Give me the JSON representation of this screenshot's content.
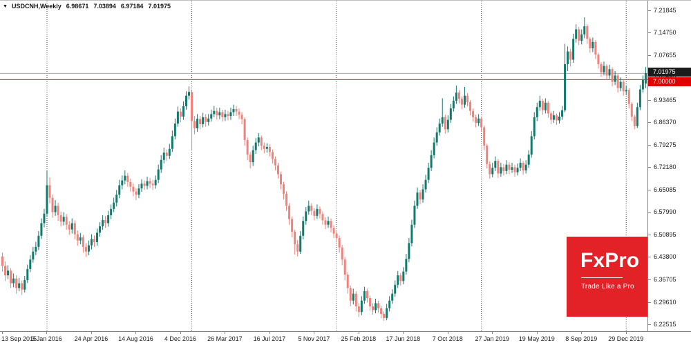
{
  "header": {
    "arrow": "▼",
    "symbol": "USDCNH,Weekly",
    "open": "6.98671",
    "high": "7.03894",
    "low": "6.97184",
    "close": "7.01975"
  },
  "colors": {
    "bull": "#12796d",
    "bear": "#f1817a",
    "price_line": "#b03a3a",
    "current_line": "#a8a8a8",
    "badge_current_bg": "#1c1c1c",
    "badge_level_bg": "#e00000",
    "separator": "#444444",
    "axis_text": "#1a1a1a",
    "logo_bg": "#e32228"
  },
  "y_axis": {
    "ticks": [
      "7.21845",
      "7.14750",
      "7.07655",
      "7.00560",
      "6.93465",
      "6.86370",
      "6.79275",
      "6.72180",
      "6.65085",
      "6.57990",
      "6.50895",
      "6.43800",
      "6.36705",
      "6.29610",
      "6.22515"
    ],
    "badge_current": "7.01975",
    "badge_level": "7.00000"
  },
  "x_axis": {
    "labels": [
      {
        "week": 0,
        "text": "13 Sep 2015"
      },
      {
        "week": 16,
        "text": "3 Jan 2016"
      },
      {
        "week": 32,
        "text": "24 Apr 2016"
      },
      {
        "week": 48,
        "text": "14 Aug 2016"
      },
      {
        "week": 64,
        "text": "4 Dec 2016"
      },
      {
        "week": 80,
        "text": "26 Mar 2017"
      },
      {
        "week": 96,
        "text": "16 Jul 2017"
      },
      {
        "week": 112,
        "text": "5 Nov 2017"
      },
      {
        "week": 128,
        "text": "25 Feb 2018"
      },
      {
        "week": 144,
        "text": "17 Jun 2018"
      },
      {
        "week": 160,
        "text": "7 Oct 2018"
      },
      {
        "week": 176,
        "text": "27 Jan 2019"
      },
      {
        "week": 192,
        "text": "19 May 2019"
      },
      {
        "week": 208,
        "text": "8 Sep 2019"
      },
      {
        "week": 224,
        "text": "29 Dec 2019"
      }
    ]
  },
  "logo": {
    "text": "FxPro",
    "tagline": "Trade Like a Pro"
  },
  "chart_data": {
    "type": "candlestick",
    "symbol": "USDCNH",
    "timeframe": "Weekly",
    "title": "USDCNH,Weekly 6.98671 7.03894 6.97184 7.01975",
    "grid": "off",
    "legend": "none",
    "ylim": [
      6.2034,
      7.2486
    ],
    "current_price": 7.01975,
    "horizontal_level": 7.0,
    "year_separator_weeks": [
      16,
      68,
      120,
      172,
      224
    ],
    "x_start_label": "13 Sep 2015",
    "x_end_label": "29 Dec 2019",
    "candles_ohlc": [
      [
        6.44,
        6.452,
        6.392,
        6.41
      ],
      [
        6.41,
        6.424,
        6.362,
        6.38
      ],
      [
        6.38,
        6.412,
        6.368,
        6.395
      ],
      [
        6.395,
        6.403,
        6.34,
        6.355
      ],
      [
        6.355,
        6.386,
        6.342,
        6.37
      ],
      [
        6.37,
        6.38,
        6.322,
        6.34
      ],
      [
        6.34,
        6.372,
        6.33,
        6.355
      ],
      [
        6.355,
        6.364,
        6.318,
        6.335
      ],
      [
        6.335,
        6.378,
        6.326,
        6.365
      ],
      [
        6.365,
        6.414,
        6.356,
        6.4
      ],
      [
        6.4,
        6.444,
        6.39,
        6.43
      ],
      [
        6.43,
        6.47,
        6.42,
        6.455
      ],
      [
        6.455,
        6.486,
        6.444,
        6.47
      ],
      [
        6.47,
        6.52,
        6.46,
        6.505
      ],
      [
        6.505,
        6.56,
        6.495,
        6.545
      ],
      [
        6.545,
        6.59,
        6.532,
        6.575
      ],
      [
        6.575,
        6.712,
        6.565,
        6.665
      ],
      [
        6.665,
        6.69,
        6.608,
        6.625
      ],
      [
        6.625,
        6.636,
        6.562,
        6.58
      ],
      [
        6.58,
        6.618,
        6.568,
        6.6
      ],
      [
        6.6,
        6.61,
        6.552,
        6.57
      ],
      [
        6.57,
        6.582,
        6.534,
        6.55
      ],
      [
        6.55,
        6.58,
        6.538,
        6.565
      ],
      [
        6.565,
        6.574,
        6.524,
        6.54
      ],
      [
        6.54,
        6.552,
        6.508,
        6.525
      ],
      [
        6.525,
        6.56,
        6.512,
        6.545
      ],
      [
        6.545,
        6.554,
        6.494,
        6.51
      ],
      [
        6.51,
        6.522,
        6.474,
        6.49
      ],
      [
        6.49,
        6.514,
        6.478,
        6.5
      ],
      [
        6.5,
        6.508,
        6.452,
        6.47
      ],
      [
        6.47,
        6.482,
        6.438,
        6.455
      ],
      [
        6.455,
        6.49,
        6.444,
        6.475
      ],
      [
        6.475,
        6.51,
        6.462,
        6.495
      ],
      [
        6.495,
        6.506,
        6.47,
        6.485
      ],
      [
        6.485,
        6.528,
        6.474,
        6.515
      ],
      [
        6.515,
        6.548,
        6.502,
        6.535
      ],
      [
        6.535,
        6.57,
        6.524,
        6.555
      ],
      [
        6.555,
        6.568,
        6.53,
        6.545
      ],
      [
        6.545,
        6.584,
        6.534,
        6.57
      ],
      [
        6.57,
        6.604,
        6.558,
        6.59
      ],
      [
        6.59,
        6.626,
        6.58,
        6.61
      ],
      [
        6.61,
        6.65,
        6.598,
        6.635
      ],
      [
        6.635,
        6.682,
        6.624,
        6.665
      ],
      [
        6.665,
        6.696,
        6.652,
        6.68
      ],
      [
        6.68,
        6.712,
        6.668,
        6.695
      ],
      [
        6.695,
        6.704,
        6.66,
        6.675
      ],
      [
        6.675,
        6.686,
        6.645,
        6.66
      ],
      [
        6.66,
        6.67,
        6.63,
        6.645
      ],
      [
        6.645,
        6.656,
        6.618,
        6.635
      ],
      [
        6.635,
        6.668,
        6.624,
        6.655
      ],
      [
        6.655,
        6.684,
        6.644,
        6.67
      ],
      [
        6.67,
        6.68,
        6.65,
        6.663
      ],
      [
        6.663,
        6.692,
        6.652,
        6.678
      ],
      [
        6.678,
        6.688,
        6.656,
        6.67
      ],
      [
        6.67,
        6.682,
        6.65,
        6.665
      ],
      [
        6.665,
        6.696,
        6.654,
        6.682
      ],
      [
        6.682,
        6.73,
        6.672,
        6.715
      ],
      [
        6.715,
        6.76,
        6.704,
        6.745
      ],
      [
        6.745,
        6.784,
        6.734,
        6.768
      ],
      [
        6.768,
        6.778,
        6.742,
        6.758
      ],
      [
        6.758,
        6.796,
        6.748,
        6.78
      ],
      [
        6.78,
        6.838,
        6.77,
        6.82
      ],
      [
        6.82,
        6.876,
        6.81,
        6.86
      ],
      [
        6.86,
        6.914,
        6.85,
        6.898
      ],
      [
        6.898,
        6.908,
        6.864,
        6.882
      ],
      [
        6.882,
        6.93,
        6.872,
        6.915
      ],
      [
        6.915,
        6.962,
        6.904,
        6.948
      ],
      [
        6.948,
        6.978,
        6.936,
        6.96
      ],
      [
        6.96,
        6.966,
        6.776,
        6.868
      ],
      [
        6.868,
        6.884,
        6.826,
        6.845
      ],
      [
        6.845,
        6.89,
        6.834,
        6.875
      ],
      [
        6.875,
        6.884,
        6.842,
        6.858
      ],
      [
        6.858,
        6.894,
        6.848,
        6.88
      ],
      [
        6.88,
        6.89,
        6.85,
        6.865
      ],
      [
        6.865,
        6.89,
        6.854,
        6.876
      ],
      [
        6.876,
        6.904,
        6.866,
        6.89
      ],
      [
        6.89,
        6.916,
        6.88,
        6.9
      ],
      [
        6.9,
        6.91,
        6.872,
        6.886
      ],
      [
        6.886,
        6.91,
        6.874,
        6.896
      ],
      [
        6.896,
        6.904,
        6.866,
        6.88
      ],
      [
        6.88,
        6.904,
        6.868,
        6.89
      ],
      [
        6.89,
        6.9,
        6.87,
        6.884
      ],
      [
        6.884,
        6.91,
        6.872,
        6.896
      ],
      [
        6.896,
        6.92,
        6.884,
        6.906
      ],
      [
        6.906,
        6.916,
        6.884,
        6.898
      ],
      [
        6.898,
        6.908,
        6.874,
        6.888
      ],
      [
        6.888,
        6.896,
        6.858,
        6.874
      ],
      [
        6.874,
        6.88,
        6.79,
        6.808
      ],
      [
        6.808,
        6.816,
        6.744,
        6.762
      ],
      [
        6.762,
        6.77,
        6.718,
        6.738
      ],
      [
        6.738,
        6.79,
        6.726,
        6.776
      ],
      [
        6.776,
        6.814,
        6.764,
        6.8
      ],
      [
        6.8,
        6.83,
        6.788,
        6.816
      ],
      [
        6.816,
        6.822,
        6.776,
        6.79
      ],
      [
        6.79,
        6.8,
        6.766,
        6.78
      ],
      [
        6.78,
        6.798,
        6.768,
        6.786
      ],
      [
        6.786,
        6.794,
        6.756,
        6.77
      ],
      [
        6.77,
        6.778,
        6.734,
        6.748
      ],
      [
        6.748,
        6.756,
        6.712,
        6.728
      ],
      [
        6.728,
        6.736,
        6.686,
        6.7
      ],
      [
        6.7,
        6.708,
        6.652,
        6.668
      ],
      [
        6.668,
        6.676,
        6.62,
        6.638
      ],
      [
        6.638,
        6.646,
        6.584,
        6.6
      ],
      [
        6.6,
        6.608,
        6.54,
        6.558
      ],
      [
        6.558,
        6.566,
        6.5,
        6.518
      ],
      [
        6.518,
        6.524,
        6.446,
        6.478
      ],
      [
        6.478,
        6.492,
        6.44,
        6.455
      ],
      [
        6.455,
        6.52,
        6.448,
        6.505
      ],
      [
        6.505,
        6.566,
        6.494,
        6.552
      ],
      [
        6.552,
        6.596,
        6.54,
        6.582
      ],
      [
        6.582,
        6.616,
        6.572,
        6.6
      ],
      [
        6.6,
        6.608,
        6.57,
        6.584
      ],
      [
        6.584,
        6.592,
        6.554,
        6.568
      ],
      [
        6.568,
        6.604,
        6.558,
        6.59
      ],
      [
        6.59,
        6.598,
        6.56,
        6.574
      ],
      [
        6.574,
        6.582,
        6.54,
        6.554
      ],
      [
        6.554,
        6.564,
        6.526,
        6.54
      ],
      [
        6.54,
        6.566,
        6.53,
        6.552
      ],
      [
        6.552,
        6.56,
        6.516,
        6.53
      ],
      [
        6.53,
        6.538,
        6.498,
        6.512
      ],
      [
        6.512,
        6.522,
        6.484,
        6.498
      ],
      [
        6.498,
        6.506,
        6.452,
        6.468
      ],
      [
        6.468,
        6.476,
        6.412,
        6.43
      ],
      [
        6.43,
        6.438,
        6.364,
        6.382
      ],
      [
        6.382,
        6.39,
        6.322,
        6.34
      ],
      [
        6.34,
        6.348,
        6.282,
        6.3
      ],
      [
        6.3,
        6.338,
        6.288,
        6.322
      ],
      [
        6.322,
        6.33,
        6.266,
        6.282
      ],
      [
        6.282,
        6.292,
        6.248,
        6.264
      ],
      [
        6.264,
        6.314,
        6.254,
        6.3
      ],
      [
        6.3,
        6.344,
        6.29,
        6.33
      ],
      [
        6.33,
        6.338,
        6.294,
        6.308
      ],
      [
        6.308,
        6.316,
        6.268,
        6.282
      ],
      [
        6.282,
        6.292,
        6.256,
        6.27
      ],
      [
        6.27,
        6.306,
        6.26,
        6.292
      ],
      [
        6.292,
        6.3,
        6.262,
        6.276
      ],
      [
        6.276,
        6.284,
        6.244,
        6.258
      ],
      [
        6.258,
        6.266,
        6.236,
        6.245
      ],
      [
        6.245,
        6.29,
        6.238,
        6.276
      ],
      [
        6.276,
        6.314,
        6.266,
        6.3
      ],
      [
        6.3,
        6.336,
        6.29,
        6.322
      ],
      [
        6.322,
        6.364,
        6.312,
        6.35
      ],
      [
        6.35,
        6.394,
        6.34,
        6.38
      ],
      [
        6.38,
        6.388,
        6.348,
        6.362
      ],
      [
        6.362,
        6.406,
        6.352,
        6.392
      ],
      [
        6.392,
        6.448,
        6.382,
        6.432
      ],
      [
        6.432,
        6.498,
        6.422,
        6.482
      ],
      [
        6.482,
        6.556,
        6.472,
        6.54
      ],
      [
        6.54,
        6.616,
        6.53,
        6.6
      ],
      [
        6.6,
        6.658,
        6.59,
        6.642
      ],
      [
        6.642,
        6.65,
        6.604,
        6.62
      ],
      [
        6.62,
        6.668,
        6.61,
        6.652
      ],
      [
        6.652,
        6.698,
        6.642,
        6.682
      ],
      [
        6.682,
        6.736,
        6.672,
        6.72
      ],
      [
        6.72,
        6.776,
        6.71,
        6.76
      ],
      [
        6.76,
        6.816,
        6.75,
        6.8
      ],
      [
        6.8,
        6.848,
        6.79,
        6.832
      ],
      [
        6.832,
        6.876,
        6.822,
        6.86
      ],
      [
        6.86,
        6.94,
        6.85,
        6.88
      ],
      [
        6.88,
        6.888,
        6.828,
        6.842
      ],
      [
        6.842,
        6.886,
        6.832,
        6.872
      ],
      [
        6.872,
        6.922,
        6.862,
        6.908
      ],
      [
        6.908,
        6.946,
        6.898,
        6.932
      ],
      [
        6.932,
        6.98,
        6.922,
        6.958
      ],
      [
        6.958,
        6.966,
        6.924,
        6.938
      ],
      [
        6.938,
        6.946,
        6.906,
        6.92
      ],
      [
        6.92,
        6.976,
        6.91,
        6.948
      ],
      [
        6.948,
        6.956,
        6.914,
        6.928
      ],
      [
        6.928,
        6.934,
        6.886,
        6.9
      ],
      [
        6.9,
        6.908,
        6.866,
        6.88
      ],
      [
        6.88,
        6.888,
        6.848,
        6.862
      ],
      [
        6.862,
        6.89,
        6.852,
        6.876
      ],
      [
        6.876,
        6.882,
        6.834,
        6.848
      ],
      [
        6.848,
        6.854,
        6.776,
        6.79
      ],
      [
        6.79,
        6.796,
        6.718,
        6.732
      ],
      [
        6.732,
        6.74,
        6.686,
        6.7
      ],
      [
        6.7,
        6.736,
        6.69,
        6.72
      ],
      [
        6.72,
        6.756,
        6.71,
        6.742
      ],
      [
        6.742,
        6.748,
        6.688,
        6.702
      ],
      [
        6.702,
        6.736,
        6.692,
        6.722
      ],
      [
        6.722,
        6.732,
        6.696,
        6.71
      ],
      [
        6.71,
        6.744,
        6.7,
        6.73
      ],
      [
        6.73,
        6.738,
        6.7,
        6.714
      ],
      [
        6.714,
        6.736,
        6.704,
        6.722
      ],
      [
        6.722,
        6.73,
        6.692,
        6.706
      ],
      [
        6.706,
        6.734,
        6.696,
        6.72
      ],
      [
        6.72,
        6.75,
        6.71,
        6.736
      ],
      [
        6.736,
        6.742,
        6.698,
        6.712
      ],
      [
        6.712,
        6.744,
        6.702,
        6.73
      ],
      [
        6.73,
        6.776,
        6.72,
        6.762
      ],
      [
        6.762,
        6.836,
        6.752,
        6.82
      ],
      [
        6.82,
        6.896,
        6.81,
        6.88
      ],
      [
        6.88,
        6.926,
        6.868,
        6.912
      ],
      [
        6.912,
        6.948,
        6.9,
        6.932
      ],
      [
        6.932,
        6.938,
        6.888,
        6.902
      ],
      [
        6.902,
        6.94,
        6.892,
        6.926
      ],
      [
        6.926,
        6.932,
        6.878,
        6.892
      ],
      [
        6.892,
        6.898,
        6.858,
        6.872
      ],
      [
        6.872,
        6.9,
        6.862,
        6.886
      ],
      [
        6.886,
        6.892,
        6.856,
        6.87
      ],
      [
        6.87,
        6.896,
        6.86,
        6.882
      ],
      [
        6.882,
        6.916,
        6.872,
        6.902
      ],
      [
        6.902,
        7.112,
        6.896,
        7.048
      ],
      [
        7.048,
        7.104,
        7.026,
        7.088
      ],
      [
        7.088,
        7.096,
        7.04,
        7.062
      ],
      [
        7.062,
        7.144,
        7.052,
        7.128
      ],
      [
        7.128,
        7.174,
        7.116,
        7.158
      ],
      [
        7.158,
        7.166,
        7.108,
        7.122
      ],
      [
        7.122,
        7.158,
        7.11,
        7.142
      ],
      [
        7.142,
        7.196,
        7.13,
        7.168
      ],
      [
        7.168,
        7.174,
        7.112,
        7.128
      ],
      [
        7.128,
        7.134,
        7.084,
        7.098
      ],
      [
        7.098,
        7.132,
        7.086,
        7.118
      ],
      [
        7.118,
        7.124,
        7.064,
        7.078
      ],
      [
        7.078,
        7.084,
        7.034,
        7.048
      ],
      [
        7.048,
        7.054,
        7.008,
        7.022
      ],
      [
        7.022,
        7.056,
        7.012,
        7.042
      ],
      [
        7.042,
        7.048,
        6.998,
        7.012
      ],
      [
        7.012,
        7.046,
        7.002,
        7.032
      ],
      [
        7.032,
        7.038,
        6.978,
        6.992
      ],
      [
        6.992,
        7.026,
        6.982,
        7.012
      ],
      [
        7.012,
        7.018,
        6.958,
        6.972
      ],
      [
        6.972,
        7.006,
        6.962,
        6.992
      ],
      [
        6.992,
        6.998,
        6.948,
        6.962
      ],
      [
        6.962,
        6.98,
        6.95,
        6.966
      ],
      [
        6.966,
        6.972,
        6.908,
        6.922
      ],
      [
        6.922,
        6.928,
        6.868,
        6.882
      ],
      [
        6.882,
        6.888,
        6.842,
        6.852
      ],
      [
        6.852,
        6.926,
        6.846,
        6.912
      ],
      [
        6.912,
        6.982,
        6.902,
        6.968
      ],
      [
        6.968,
        7.012,
        6.958,
        6.998
      ],
      [
        6.98671,
        7.03894,
        6.97184,
        7.01975
      ]
    ]
  }
}
